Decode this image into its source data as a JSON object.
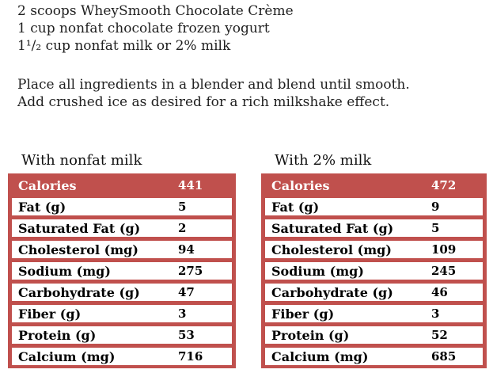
{
  "recipe": {
    "ingredients": [
      "2 scoops WheySmooth Chocolate Crème",
      "1 cup nonfat chocolate frozen yogurt",
      "1¹/₂ cup nonfat milk or 2% milk"
    ],
    "instructions": [
      "Place all ingredients in a blender and blend until smooth.",
      "Add crushed ice as desired for a rich milkshake effect."
    ]
  },
  "tables": [
    {
      "title": "With nonfat milk",
      "header": {
        "label": "Calories",
        "value": "441"
      },
      "rows": [
        {
          "label": "Fat (g)",
          "value": "5"
        },
        {
          "label": "Saturated Fat (g)",
          "value": "2"
        },
        {
          "label": "Cholesterol (mg)",
          "value": "94"
        },
        {
          "label": "Sodium (mg)",
          "value": "275"
        },
        {
          "label": "Carbohydrate (g)",
          "value": "47"
        },
        {
          "label": "Fiber (g)",
          "value": "3"
        },
        {
          "label": "Protein (g)",
          "value": "53"
        },
        {
          "label": "Calcium (mg)",
          "value": "716"
        }
      ]
    },
    {
      "title": "With 2% milk",
      "header": {
        "label": "Calories",
        "value": "472"
      },
      "rows": [
        {
          "label": "Fat (g)",
          "value": "9"
        },
        {
          "label": "Saturated Fat (g)",
          "value": "5"
        },
        {
          "label": "Cholesterol (mg)",
          "value": "109"
        },
        {
          "label": "Sodium (mg)",
          "value": "245"
        },
        {
          "label": "Carbohydrate (g)",
          "value": "46"
        },
        {
          "label": "Fiber (g)",
          "value": "3"
        },
        {
          "label": "Protein (g)",
          "value": "52"
        },
        {
          "label": "Calcium (mg)",
          "value": "685"
        }
      ]
    }
  ],
  "colors": {
    "accent_red": "#C0504D",
    "header_text": "#FFFFFF",
    "body_text": "#1F1F1F"
  }
}
